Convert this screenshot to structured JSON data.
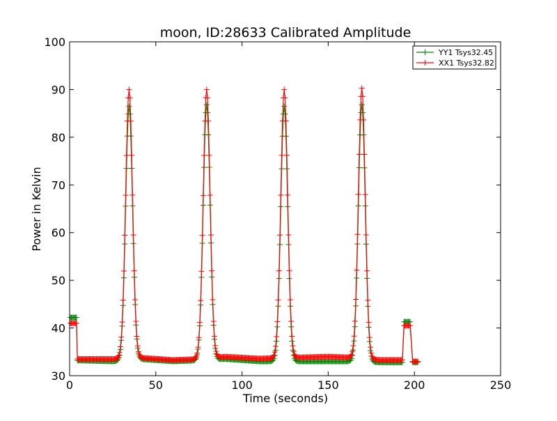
{
  "chart_data": {
    "type": "line",
    "title": "moon, ID:28633 Calibrated Amplitude",
    "xlabel": "Time (seconds)",
    "ylabel": "Power in Kelvin",
    "xlim": [
      0,
      250
    ],
    "ylim": [
      30,
      100
    ],
    "xticks": [
      "0",
      "50",
      "100",
      "150",
      "200",
      "250"
    ],
    "yticks": [
      "30",
      "40",
      "50",
      "60",
      "70",
      "80",
      "90",
      "100"
    ],
    "grid": false,
    "legend_position": "top-right",
    "marker": "+",
    "pulses": {
      "centers": [
        34.5,
        79.5,
        124.5,
        169.5
      ],
      "sigma": 2.0
    },
    "series": [
      {
        "name": "YY1 Tsys32.45",
        "color": "#008000",
        "segments": [
          {
            "x_start": 0.5,
            "x_end": 4,
            "step": 0.5,
            "base": 42.2
          },
          {
            "x_start": 4.5,
            "x_end": 193,
            "step": 0.5,
            "base_points": [
              [
                4.5,
                33.2
              ],
              [
                25,
                33.0
              ],
              [
                40,
                33.5
              ],
              [
                60,
                33.0
              ],
              [
                75,
                33.2
              ],
              [
                90,
                33.5
              ],
              [
                110,
                33.0
              ],
              [
                130,
                33.0
              ],
              [
                150,
                33.0
              ],
              [
                165,
                33.0
              ],
              [
                180,
                32.8
              ],
              [
                193,
                32.8
              ]
            ],
            "peaks": [
              86.5,
              86.8,
              86.5,
              86.8
            ]
          },
          {
            "x_start": 194,
            "x_end": 197.5,
            "step": 0.5,
            "base": 41.3
          },
          {
            "x_start": 199,
            "x_end": 202,
            "step": 0.5,
            "base": 32.8
          }
        ]
      },
      {
        "name": "XX1 Tsys32.82",
        "color": "#ff0000",
        "segments": [
          {
            "x_start": 0.5,
            "x_end": 4,
            "step": 0.5,
            "base": 41.0
          },
          {
            "x_start": 4.5,
            "x_end": 193,
            "step": 0.5,
            "base_points": [
              [
                4.5,
                33.5
              ],
              [
                25,
                33.5
              ],
              [
                40,
                33.8
              ],
              [
                60,
                33.3
              ],
              [
                75,
                33.5
              ],
              [
                90,
                34.0
              ],
              [
                110,
                33.6
              ],
              [
                130,
                33.8
              ],
              [
                150,
                34.0
              ],
              [
                165,
                33.8
              ],
              [
                180,
                33.3
              ],
              [
                193,
                33.3
              ]
            ],
            "peaks": [
              90.0,
              90.0,
              90.0,
              90.3
            ]
          },
          {
            "x_start": 194,
            "x_end": 197.5,
            "step": 0.5,
            "base": 40.5
          },
          {
            "x_start": 199,
            "x_end": 202,
            "step": 0.5,
            "base": 33.0
          }
        ]
      }
    ]
  }
}
